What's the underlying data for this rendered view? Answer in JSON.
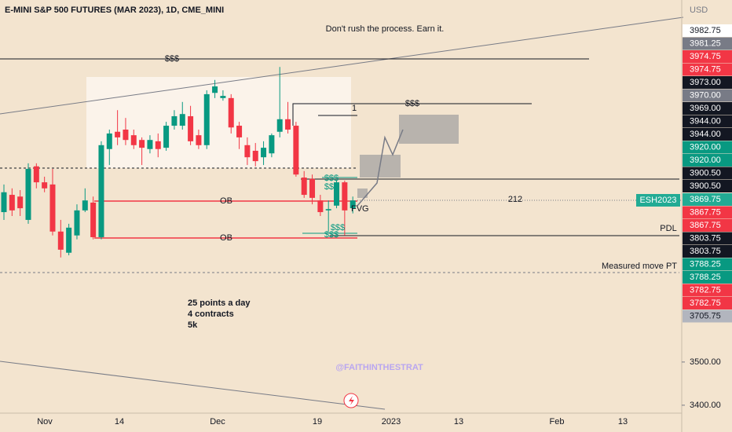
{
  "chart_data": {
    "type": "candlestick",
    "title": "E-MINI S&P 500 FUTURES (MAR 2023), 1D, CME_MINI",
    "up_color": "#089981",
    "down_color": "#f23645",
    "open": [
      3847,
      3887,
      3883,
      3829,
      3953,
      3916,
      3911,
      3802,
      3753,
      3793,
      3851,
      3869,
      3789,
      3993,
      4033,
      4038,
      4025,
      4014,
      3993,
      4011,
      3996,
      4047,
      4047,
      4069,
      4025,
      4002,
      4123,
      4111,
      4111,
      4047,
      4002,
      3989,
      3974,
      3983,
      4033,
      4062,
      4047,
      3927,
      3924,
      3874,
      3851,
      3862,
      3916,
      3856
    ],
    "high": [
      3911,
      3902,
      3898,
      3960,
      3960,
      3929,
      3947,
      3829,
      3820,
      3865,
      3902,
      3883,
      4011,
      4038,
      4083,
      4065,
      4038,
      4020,
      4025,
      4029,
      4056,
      4083,
      4102,
      4093,
      4038,
      4129,
      4153,
      4129,
      4120,
      4056,
      4020,
      4007,
      4011,
      4029,
      4183,
      4102,
      4056,
      3942,
      3934,
      3887,
      3874,
      3920,
      3920,
      3883
    ],
    "low": [
      3829,
      3838,
      3838,
      3820,
      3902,
      3893,
      3793,
      3742,
      3747,
      3784,
      3847,
      3784,
      3784,
      3956,
      4002,
      4002,
      3993,
      3956,
      3983,
      3974,
      3989,
      4038,
      4038,
      4002,
      3993,
      3993,
      4111,
      4105,
      4029,
      3993,
      3956,
      3953,
      3956,
      3974,
      4020,
      4029,
      3929,
      3880,
      3865,
      3838,
      3802,
      3856,
      3793,
      3844
    ],
    "close": [
      3893,
      3851,
      3856,
      3947,
      3916,
      3902,
      3802,
      3760,
      3811,
      3851,
      3874,
      3789,
      4002,
      4029,
      4020,
      4014,
      4002,
      3996,
      4014,
      3993,
      4047,
      4069,
      4074,
      4011,
      4002,
      4120,
      4138,
      4116,
      4043,
      4020,
      3974,
      3965,
      3996,
      4025,
      4062,
      4038,
      3934,
      3887,
      3880,
      3847,
      3854,
      3916,
      3851,
      3874
    ],
    "ylim": [
      3338,
      4338
    ],
    "yticks": [
      {
        "value": 3500,
        "label": "3500.00"
      },
      {
        "value": 3400,
        "label": "3400.00"
      }
    ],
    "x_labels": [
      "Nov",
      "14",
      "Dec",
      "19",
      "2023",
      "13",
      "Feb",
      "13"
    ],
    "currency": "USD",
    "symbol_tag": "ESH2023",
    "price_labels": [
      {
        "label": "3982.75",
        "color": "white"
      },
      {
        "label": "3981.25",
        "color": "gray"
      },
      {
        "label": "3974.75",
        "color": "red"
      },
      {
        "label": "3974.75",
        "color": "red"
      },
      {
        "label": "3973.00",
        "color": "black"
      },
      {
        "label": "3970.00",
        "color": "gray"
      },
      {
        "label": "3969.00",
        "color": "black"
      },
      {
        "label": "3944.00",
        "color": "black"
      },
      {
        "label": "3944.00",
        "color": "black"
      },
      {
        "label": "3920.00",
        "color": "green"
      },
      {
        "label": "3920.00",
        "color": "green"
      },
      {
        "label": "3900.50",
        "color": "black"
      },
      {
        "label": "3900.50",
        "color": "black"
      },
      {
        "label": "3869.75",
        "color": "teal"
      },
      {
        "label": "3867.75",
        "color": "red"
      },
      {
        "label": "3867.75",
        "color": "red"
      },
      {
        "label": "3803.75",
        "color": "black"
      },
      {
        "label": "3803.75",
        "color": "black"
      },
      {
        "label": "3788.25",
        "color": "green"
      },
      {
        "label": "3788.25",
        "color": "green"
      },
      {
        "label": "3782.75",
        "color": "red"
      },
      {
        "label": "3782.75",
        "color": "red"
      },
      {
        "label": "3705.75",
        "color": "light"
      }
    ],
    "annotations": [
      "Don't rush the process. Earn it.",
      "$$$",
      "$$$",
      "1",
      "OB",
      "OB",
      "$$$",
      "$$$",
      "$$$",
      "$$$",
      "FVG",
      "212",
      "PDL",
      "Measured move PT",
      "25 points a day",
      "4 contracts",
      "5k",
      "@FAITHINTHESTRAT"
    ]
  }
}
